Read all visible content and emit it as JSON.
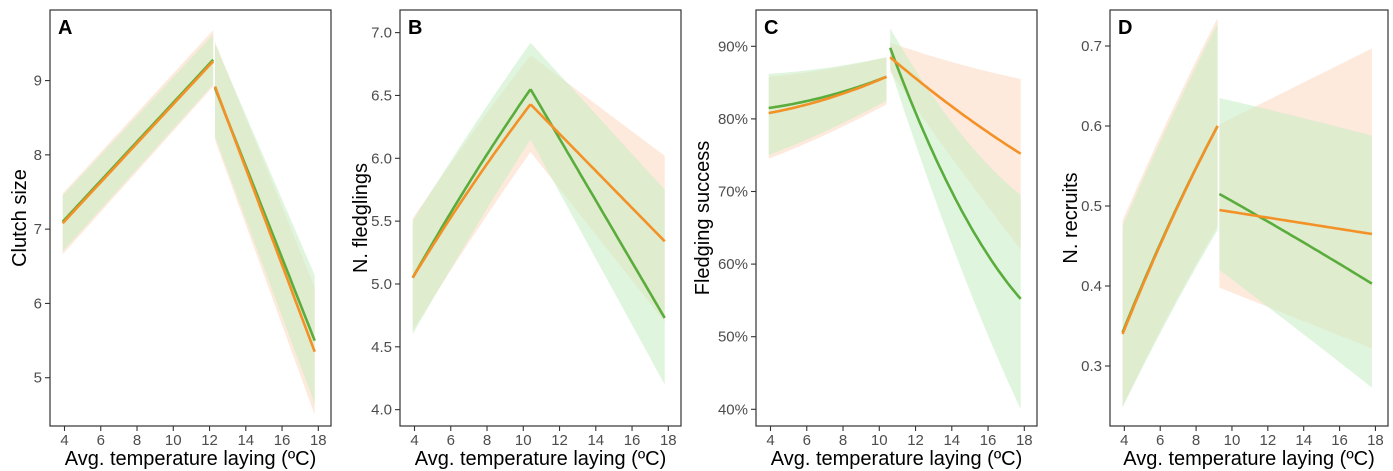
{
  "colors": {
    "green": "#5aad3c",
    "orange": "#f39127",
    "green_ribbon": "#c7ecc2",
    "orange_ribbon": "#fbd9bf",
    "axis": "#333333"
  },
  "chart_data": [
    {
      "type": "line",
      "panel": "A",
      "xlabel": "Avg. temperature laying (ºC)",
      "ylabel": "Clutch size",
      "xlim": [
        3.2,
        18.7
      ],
      "ylim": [
        4.35,
        9.95
      ],
      "xticks": [
        4,
        6,
        8,
        10,
        12,
        14,
        16,
        18
      ],
      "yticks": [
        5,
        6,
        7,
        8,
        9
      ],
      "ytick_labels": [
        "5",
        "6",
        "7",
        "8",
        "9"
      ],
      "series": [
        {
          "color": "green",
          "segments": [
            {
              "x": [
                3.9,
                12.2
              ],
              "y": [
                7.1,
                9.28
              ],
              "curve": 0.0,
              "lower": [
                6.7,
                8.95
              ],
              "upper": [
                7.45,
                9.62
              ]
            },
            {
              "x": [
                12.3,
                17.8
              ],
              "y": [
                8.9,
                5.5
              ],
              "curve": 0.0,
              "lower": [
                8.25,
                4.65
              ],
              "upper": [
                9.5,
                6.38
              ]
            }
          ]
        },
        {
          "color": "orange",
          "segments": [
            {
              "x": [
                3.9,
                12.2
              ],
              "y": [
                7.08,
                9.26
              ],
              "curve": 0.0,
              "lower": [
                6.66,
                8.92
              ],
              "upper": [
                7.48,
                9.68
              ]
            },
            {
              "x": [
                12.3,
                17.8
              ],
              "y": [
                8.92,
                5.35
              ],
              "curve": 0.0,
              "lower": [
                8.2,
                4.5
              ],
              "upper": [
                9.52,
                6.22
              ]
            }
          ]
        }
      ]
    },
    {
      "type": "line",
      "panel": "B",
      "xlabel": "Avg. temperature laying (ºC)",
      "ylabel": "N. fledglings",
      "xlim": [
        3.2,
        18.7
      ],
      "ylim": [
        3.87,
        7.18
      ],
      "xticks": [
        4,
        6,
        8,
        10,
        12,
        14,
        16,
        18
      ],
      "yticks": [
        4.0,
        4.5,
        5.0,
        5.5,
        6.0,
        6.5,
        7.0
      ],
      "ytick_labels": [
        "4.0",
        "4.5",
        "5.0",
        "5.5",
        "6.0",
        "6.5",
        "7.0"
      ],
      "series": [
        {
          "color": "green",
          "segments": [
            {
              "x": [
                3.9,
                10.4
              ],
              "y": [
                5.05,
                6.55
              ],
              "curve": 0.15,
              "lower": [
                4.6,
                6.15
              ],
              "upper": [
                5.5,
                6.92
              ]
            },
            {
              "x": [
                10.4,
                17.8
              ],
              "y": [
                6.55,
                4.73
              ],
              "curve": 0.0,
              "lower": [
                6.15,
                4.2
              ],
              "upper": [
                6.92,
                5.75
              ]
            }
          ]
        },
        {
          "color": "orange",
          "segments": [
            {
              "x": [
                3.9,
                10.4
              ],
              "y": [
                5.05,
                6.43
              ],
              "curve": 0.15,
              "lower": [
                4.63,
                6.05
              ],
              "upper": [
                5.52,
                6.82
              ]
            },
            {
              "x": [
                10.4,
                17.8
              ],
              "y": [
                6.43,
                5.34
              ],
              "curve": 0.0,
              "lower": [
                6.05,
                4.7
              ],
              "upper": [
                6.82,
                6.02
              ]
            }
          ]
        }
      ]
    },
    {
      "type": "line",
      "panel": "C",
      "xlabel": "Avg. temperature laying (ºC)",
      "ylabel": "Fledging success",
      "xlim": [
        3.2,
        18.7
      ],
      "ylim": [
        0.377,
        0.95
      ],
      "xticks": [
        4,
        6,
        8,
        10,
        12,
        14,
        16,
        18
      ],
      "yticks": [
        0.4,
        0.5,
        0.6,
        0.7,
        0.8,
        0.9
      ],
      "ytick_labels": [
        "40%",
        "50%",
        "60%",
        "70%",
        "80%",
        "90%"
      ],
      "series": [
        {
          "color": "green",
          "segments": [
            {
              "x": [
                3.9,
                10.4
              ],
              "y": [
                0.815,
                0.858
              ],
              "curve": -0.02,
              "lower": [
                0.75,
                0.825
              ],
              "upper": [
                0.862,
                0.885
              ]
            },
            {
              "x": [
                10.6,
                17.8
              ],
              "y": [
                0.898,
                0.552
              ],
              "curve": -0.14,
              "lower": [
                0.87,
                0.4
              ],
              "upper": [
                0.925,
                0.695
              ]
            }
          ]
        },
        {
          "color": "orange",
          "segments": [
            {
              "x": [
                3.9,
                10.4
              ],
              "y": [
                0.808,
                0.858
              ],
              "curve": -0.02,
              "lower": [
                0.745,
                0.82
              ],
              "upper": [
                0.858,
                0.885
              ]
            },
            {
              "x": [
                10.6,
                17.8
              ],
              "y": [
                0.885,
                0.752
              ],
              "curve": -0.02,
              "lower": [
                0.865,
                0.62
              ],
              "upper": [
                0.905,
                0.855
              ]
            }
          ]
        }
      ]
    },
    {
      "type": "line",
      "panel": "D",
      "xlabel": "Avg. temperature laying (ºC)",
      "ylabel": "N. recruits",
      "xlim": [
        3.2,
        18.7
      ],
      "ylim": [
        0.225,
        0.745
      ],
      "xticks": [
        4,
        6,
        8,
        10,
        12,
        14,
        16,
        18
      ],
      "yticks": [
        0.3,
        0.4,
        0.5,
        0.6,
        0.7
      ],
      "ytick_labels": [
        "0.3",
        "0.4",
        "0.5",
        "0.6",
        "0.7"
      ],
      "series": [
        {
          "color": "green",
          "segments": [
            {
              "x": [
                3.9,
                9.2
              ],
              "y": [
                0.342,
                0.6
              ],
              "curve": 0.035,
              "lower": [
                0.248,
                0.47
              ],
              "upper": [
                0.475,
                0.728
              ]
            },
            {
              "x": [
                9.3,
                17.8
              ],
              "y": [
                0.515,
                0.403
              ],
              "curve": 0.005,
              "lower": [
                0.42,
                0.273
              ],
              "upper": [
                0.635,
                0.588
              ]
            }
          ]
        },
        {
          "color": "orange",
          "segments": [
            {
              "x": [
                3.9,
                9.2
              ],
              "y": [
                0.34,
                0.6
              ],
              "curve": 0.035,
              "lower": [
                0.25,
                0.475
              ],
              "upper": [
                0.482,
                0.735
              ]
            },
            {
              "x": [
                9.3,
                17.8
              ],
              "y": [
                0.495,
                0.465
              ],
              "curve": 0.0,
              "lower": [
                0.398,
                0.322
              ],
              "upper": [
                0.602,
                0.697
              ]
            }
          ]
        }
      ]
    }
  ]
}
